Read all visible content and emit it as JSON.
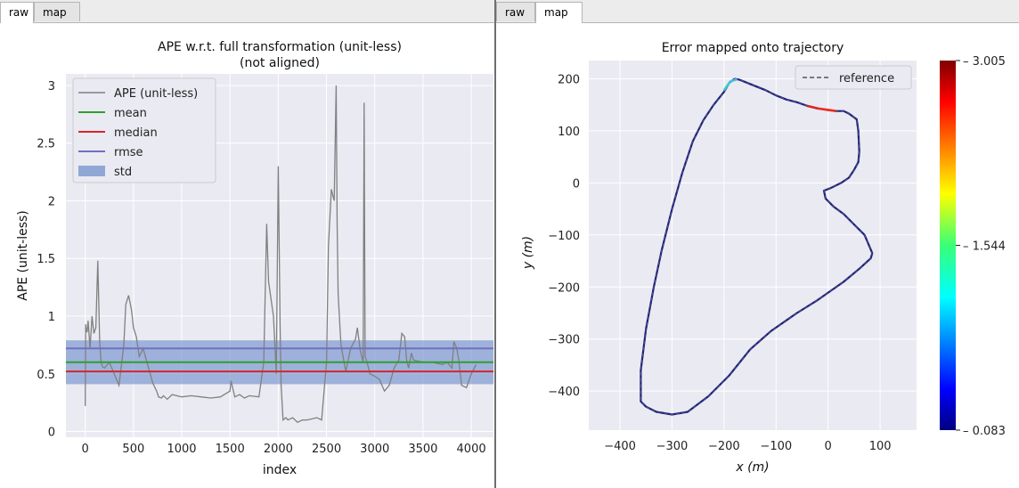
{
  "left_window": {
    "tabs": [
      {
        "label": "raw",
        "active": true
      },
      {
        "label": "map",
        "active": false
      }
    ]
  },
  "right_window": {
    "tabs": [
      {
        "label": "raw",
        "active": false
      },
      {
        "label": "map",
        "active": true
      }
    ]
  },
  "chart_data": [
    {
      "type": "line",
      "title": "APE w.r.t. full transformation (unit-less)",
      "subtitle": "(not aligned)",
      "xlabel": "index",
      "ylabel": "APE (unit-less)",
      "xlim": [
        -200,
        4230
      ],
      "ylim": [
        -0.05,
        3.1
      ],
      "xticks": [
        0,
        500,
        1000,
        1500,
        2000,
        2500,
        3000,
        3500,
        4000
      ],
      "yticks": [
        0.0,
        0.5,
        1.0,
        1.5,
        2.0,
        2.5,
        3.0
      ],
      "grid": true,
      "legend_position": "upper left",
      "colors": {
        "ape": "#808080",
        "mean": "#2ca02c",
        "median": "#d62728",
        "rmse": "#7070c0",
        "std": "#6a8acb",
        "background": "#eaeaf2"
      },
      "legend": [
        "APE (unit-less)",
        "mean",
        "median",
        "rmse",
        "std"
      ],
      "mean": 0.6,
      "median": 0.52,
      "rmse": 0.72,
      "std": 0.19,
      "series": [
        {
          "name": "APE (unit-less)",
          "x": [
            0,
            5,
            10,
            20,
            30,
            50,
            70,
            90,
            110,
            130,
            150,
            165,
            180,
            200,
            250,
            300,
            350,
            400,
            420,
            450,
            480,
            500,
            530,
            560,
            600,
            640,
            700,
            740,
            760,
            790,
            810,
            850,
            900,
            1000,
            1100,
            1200,
            1300,
            1400,
            1500,
            1510,
            1550,
            1600,
            1650,
            1700,
            1800,
            1850,
            1880,
            1900,
            1950,
            1980,
            2000,
            2020,
            2030,
            2050,
            2080,
            2100,
            2150,
            2200,
            2250,
            2300,
            2400,
            2450,
            2500,
            2520,
            2550,
            2580,
            2600,
            2610,
            2620,
            2640,
            2650,
            2700,
            2750,
            2800,
            2820,
            2850,
            2880,
            2890,
            2900,
            2920,
            2950,
            3000,
            3050,
            3100,
            3150,
            3200,
            3250,
            3280,
            3310,
            3330,
            3350,
            3380,
            3400,
            3500,
            3600,
            3700,
            3750,
            3800,
            3820,
            3850,
            3870,
            3900,
            3950,
            4000,
            4050
          ],
          "y": [
            0.22,
            0.93,
            0.88,
            0.86,
            0.96,
            0.72,
            1.0,
            0.85,
            0.9,
            1.48,
            0.78,
            0.6,
            0.56,
            0.55,
            0.6,
            0.5,
            0.4,
            0.75,
            1.1,
            1.18,
            1.05,
            0.9,
            0.82,
            0.65,
            0.72,
            0.6,
            0.42,
            0.35,
            0.3,
            0.29,
            0.31,
            0.28,
            0.32,
            0.3,
            0.31,
            0.3,
            0.29,
            0.3,
            0.35,
            0.44,
            0.3,
            0.32,
            0.29,
            0.31,
            0.3,
            0.6,
            1.8,
            1.3,
            1.0,
            0.5,
            2.3,
            0.9,
            0.4,
            0.1,
            0.12,
            0.1,
            0.12,
            0.08,
            0.1,
            0.1,
            0.12,
            0.1,
            0.6,
            1.6,
            2.1,
            2.0,
            3.0,
            1.8,
            1.2,
            0.9,
            0.75,
            0.52,
            0.72,
            0.8,
            0.9,
            0.7,
            0.6,
            2.85,
            0.65,
            0.6,
            0.5,
            0.48,
            0.45,
            0.35,
            0.4,
            0.55,
            0.62,
            0.85,
            0.82,
            0.62,
            0.55,
            0.68,
            0.62,
            0.6,
            0.6,
            0.58,
            0.6,
            0.55,
            0.78,
            0.72,
            0.62,
            0.4,
            0.38,
            0.5,
            0.58
          ]
        }
      ]
    },
    {
      "type": "line",
      "title": "Error mapped onto trajectory",
      "xlabel": "x (m)",
      "ylabel": "y (m)",
      "xlim": [
        -460,
        170
      ],
      "ylim": [
        -475,
        235
      ],
      "xticks": [
        -400,
        -300,
        -200,
        -100,
        0,
        100
      ],
      "yticks": [
        200,
        100,
        0,
        -100,
        -200,
        -300,
        -400
      ],
      "grid": true,
      "legend_position": "upper right",
      "legend": [
        "reference"
      ],
      "colorbar": {
        "min": 0.083,
        "max": 3.005,
        "mid": 1.544,
        "ticks": [
          "3.005",
          "1.544",
          "0.083"
        ],
        "colormap": "jet"
      },
      "colors": {
        "trajectory": "#1b1f8a",
        "reference": "#555555",
        "background": "#eaeaf2"
      },
      "series": [
        {
          "name": "reference",
          "x": [
            -180,
            -170,
            -150,
            -120,
            -100,
            -80,
            -60,
            -40,
            -20,
            0,
            15,
            30,
            40,
            55,
            58,
            60,
            58,
            50,
            40,
            25,
            5,
            -8,
            -5,
            10,
            30,
            50,
            70,
            85,
            82,
            60,
            30,
            -20,
            -60,
            -110,
            -150,
            -190,
            -230,
            -270,
            -300,
            -330,
            -350,
            -360,
            -360,
            -350,
            -335,
            -320,
            -300,
            -280,
            -260,
            -240,
            -220,
            -200,
            -190,
            -180
          ],
          "y": [
            200,
            198,
            190,
            178,
            168,
            160,
            155,
            148,
            143,
            140,
            138,
            138,
            133,
            122,
            100,
            60,
            40,
            25,
            10,
            0,
            -10,
            -15,
            -30,
            -45,
            -60,
            -80,
            -100,
            -135,
            -145,
            -165,
            -190,
            -225,
            -250,
            -285,
            -320,
            -370,
            -410,
            -440,
            -445,
            -440,
            -430,
            -420,
            -360,
            -280,
            -200,
            -130,
            -50,
            20,
            80,
            120,
            150,
            175,
            192,
            200
          ]
        }
      ]
    }
  ]
}
